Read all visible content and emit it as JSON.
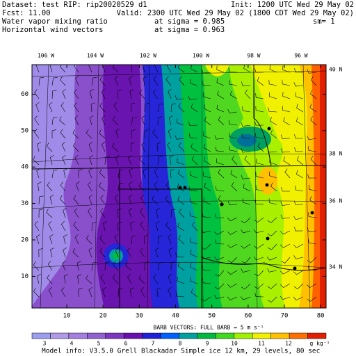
{
  "header": {
    "line1_left": "Dataset: test   RIP: rip20020529  d1",
    "line1_right": "Init: 1200 UTC Wed 29 May 02",
    "line2_left": "Fcst:     11.00",
    "line2_right": "Valid: 2300 UTC Wed 29 May 02 (1800 CDT Wed 29 May 02)",
    "line3_left": "Water vapor mixing ratio",
    "line3_mid": "at sigma = 0.985",
    "line3_right": "sm= 1",
    "line4_left": "Horizontal wind vectors",
    "line4_mid": "at sigma = 0.963"
  },
  "map": {
    "xlim": [
      0.4,
      81.5
    ],
    "ylim": [
      1.3,
      68.1
    ],
    "xticks": [
      10,
      20,
      30,
      40,
      50,
      60,
      70,
      80
    ],
    "yticks": [
      10,
      20,
      30,
      40,
      50,
      60
    ],
    "lon_labels": [
      "106 W",
      "104 W",
      "102 W",
      "100 W",
      "98 W",
      "96 W"
    ],
    "lat_labels": [
      "40 N",
      "38 N",
      "36 N",
      "34 N"
    ]
  },
  "legend": {
    "barb_text": "BARB VECTORS:  FULL BARB = 5 m s⁻¹",
    "colorbar_labels": [
      3,
      4,
      5,
      6,
      7,
      8,
      9,
      10,
      11,
      12
    ],
    "units": "g kg⁻¹",
    "colors": [
      "#9c9cf0",
      "#b09ae8",
      "#a47ee0",
      "#9060d0",
      "#7c36c0",
      "#6a10ae",
      "#2020d8",
      "#0060ff",
      "#00a0a0",
      "#00b840",
      "#40d820",
      "#a0f000",
      "#f0f000",
      "#ffc000",
      "#ff7000",
      "#e02000"
    ]
  },
  "footer": "Model info: V3.5.0   Grell     Blackadar   Simple ice    12 km,  29 levels,   80 sec"
}
